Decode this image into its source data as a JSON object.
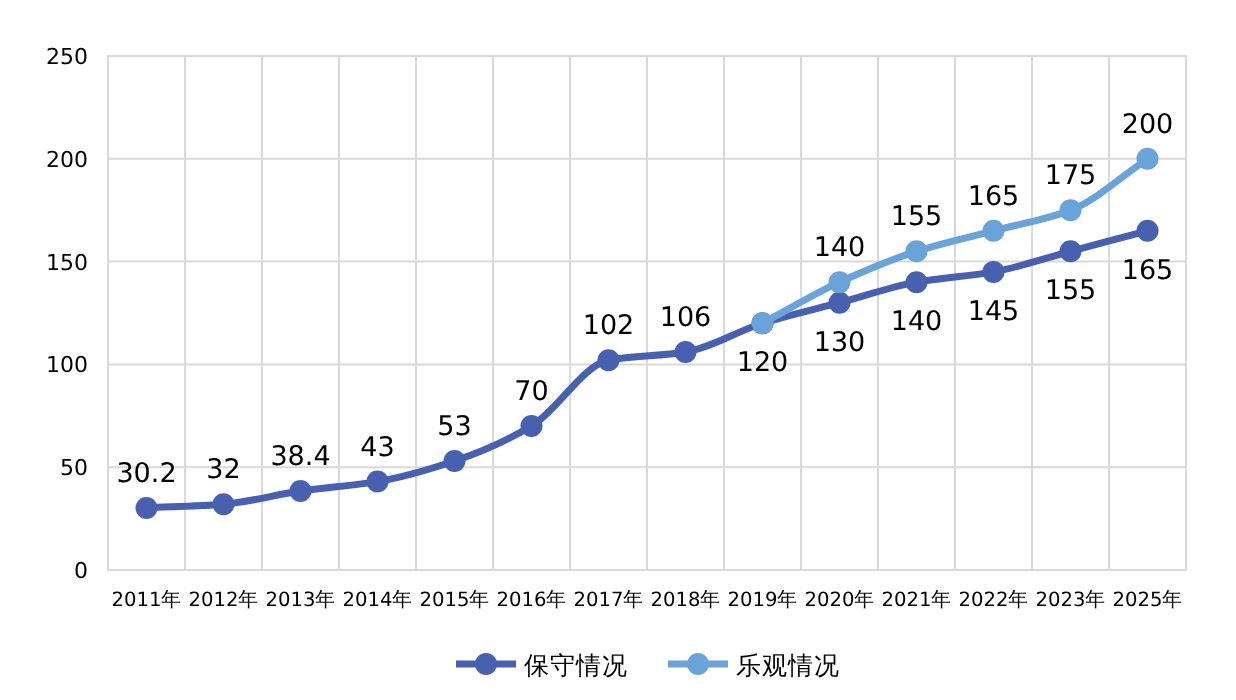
{
  "chart_data": {
    "type": "line",
    "categories": [
      "2011年",
      "2012年",
      "2013年",
      "2014年",
      "2015年",
      "2016年",
      "2017年",
      "2018年",
      "2019年",
      "2020年",
      "2021年",
      "2022年",
      "2023年",
      "2025年"
    ],
    "series": [
      {
        "name": "保守情况",
        "color": "#4760b0",
        "values": [
          30.2,
          32,
          38.4,
          43,
          53,
          70,
          102,
          106,
          120,
          130,
          140,
          145,
          155,
          165
        ],
        "value_labels": [
          "30.2",
          "32",
          "38.4",
          "43",
          "53",
          "70",
          "102",
          "106",
          "120",
          "130",
          "140",
          "145",
          "155",
          "165"
        ]
      },
      {
        "name": "乐观情况",
        "color": "#6aa3d8",
        "values": [
          null,
          null,
          null,
          null,
          null,
          null,
          null,
          null,
          120,
          140,
          155,
          165,
          175,
          200
        ],
        "value_labels": [
          null,
          null,
          null,
          null,
          null,
          null,
          null,
          null,
          null,
          "140",
          "155",
          "165",
          "175",
          "200"
        ]
      }
    ],
    "ylim": [
      0,
      250
    ],
    "yticks": [
      0,
      50,
      100,
      150,
      200,
      250
    ],
    "grid": true,
    "legend": "bottom",
    "marker": "circle",
    "line_style": "solid"
  }
}
